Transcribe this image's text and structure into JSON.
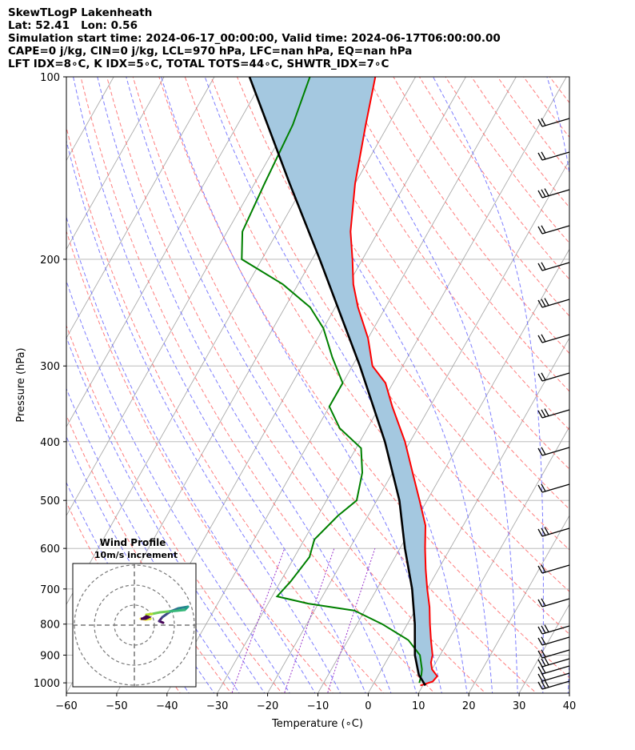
{
  "header": {
    "line1": "SkewTLogP Lakenheath",
    "line2": "Lat: 52.41   Lon: 0.56",
    "line3": "Simulation start time: 2024-06-17_00:00:00, Valid time: 2024-06-17T06:00:00.00",
    "line4": "CAPE=0 j/kg, CIN=0 j/kg, LCL=970 hPa, LFC=nan hPa, EQ=nan hPa",
    "line5": "LFT IDX=8∘C, K IDX=5∘C, TOTAL TOTS=44∘C, SHWTR_IDX=7∘C"
  },
  "inset": {
    "title": "Wind Profile",
    "subtitle": "10m/s increment"
  },
  "colors": {
    "temperature": "#ff0000",
    "dewpoint": "#008000",
    "parcel": "#000000",
    "cape_fill": "#a4c8e0",
    "dry_adiabat": "#ff6666",
    "moist_adiabat": "#6666ff",
    "mixing_ratio": "#9933cc",
    "isotherm": "#aaaaaa",
    "grid": "#b0b0b0"
  },
  "chart_data": {
    "type": "line",
    "subtype": "skew-T log-P",
    "xlabel": "Temperature (∘C)",
    "ylabel": "Pressure (hPa)",
    "xlim": [
      -60,
      40
    ],
    "ylim": [
      1040,
      100
    ],
    "yscale": "log",
    "xticks": [
      -60,
      -50,
      -40,
      -30,
      -20,
      -10,
      0,
      10,
      20,
      30,
      40
    ],
    "xtick_labels": [
      "−60",
      "−50",
      "−40",
      "−30",
      "−20",
      "−10",
      "0",
      "10",
      "20",
      "30",
      "40"
    ],
    "yticks": [
      1000,
      900,
      800,
      700,
      600,
      500,
      400,
      300,
      200,
      100
    ],
    "ytick_labels": [
      "1000",
      "900",
      "800",
      "700",
      "600",
      "500",
      "400",
      "300",
      "200",
      "100"
    ],
    "grid": true,
    "series": [
      {
        "id": "temperature",
        "p": [
          1010,
          995,
          975,
          950,
          925,
          900,
          850,
          800,
          750,
          700,
          650,
          600,
          550,
          500,
          450,
          400,
          350,
          320,
          300,
          270,
          240,
          220,
          200,
          180,
          150,
          120,
          100
        ],
        "T": [
          9.5,
          11.5,
          11.8,
          10,
          9,
          8.5,
          6.5,
          4.5,
          2.5,
          0,
          -2.5,
          -5,
          -7.5,
          -11.5,
          -16,
          -21,
          -27.5,
          -31.5,
          -36,
          -40,
          -45.5,
          -49,
          -52,
          -55.5,
          -60,
          -64.5,
          -68
        ]
      },
      {
        "id": "dewpoint",
        "p": [
          1000,
          970,
          950,
          900,
          850,
          800,
          760,
          740,
          720,
          680,
          620,
          580,
          530,
          500,
          450,
          410,
          380,
          350,
          320,
          290,
          260,
          240,
          220,
          200,
          180,
          150,
          120,
          100
        ],
        "T": [
          9,
          8.5,
          8,
          6,
          2,
          -5,
          -12,
          -22,
          -29,
          -28,
          -27,
          -28,
          -26,
          -24,
          -26,
          -29,
          -35.5,
          -40,
          -40,
          -45,
          -50,
          -55,
          -63,
          -74,
          -77,
          -78,
          -79,
          -81
        ]
      },
      {
        "id": "parcel",
        "p": [
          1010,
          970,
          900,
          800,
          700,
          600,
          500,
          400,
          300,
          250,
          200,
          150,
          100
        ],
        "T": [
          10.5,
          8,
          5,
          1.5,
          -3,
          -9,
          -15.5,
          -25,
          -38.5,
          -47.5,
          -58.5,
          -73,
          -93
        ]
      }
    ]
  }
}
